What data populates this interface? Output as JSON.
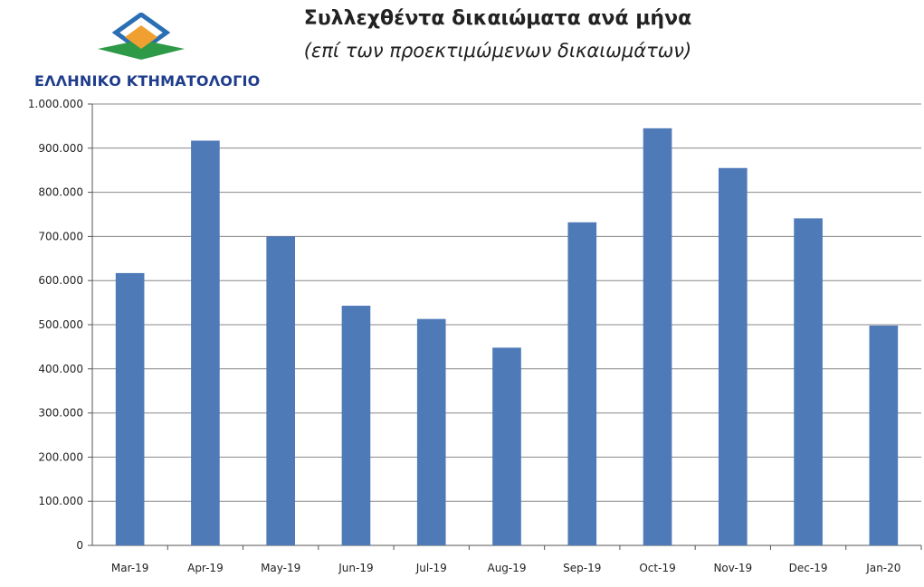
{
  "logo": {
    "name": "ΕΛΛΗΝΙΚΟ ΚΤΗΜΑΤΟΛΟΓΙΟ",
    "colors": {
      "orange": "#f0a030",
      "green": "#2e9a48",
      "blue": "#2a6fb3",
      "text": "#1f3d8c"
    }
  },
  "chart_data": {
    "type": "bar",
    "title": "Συλλεχθέντα δικαιώματα ανά μήνα",
    "subtitle": "(επί των προεκτιμώμενων δικαιωμάτων)",
    "categories": [
      "Mar-19",
      "Apr-19",
      "May-19",
      "Jun-19",
      "Jul-19",
      "Aug-19",
      "Sep-19",
      "Oct-19",
      "Nov-19",
      "Dec-19",
      "Jan-20"
    ],
    "values": [
      617000,
      917000,
      700000,
      543000,
      513000,
      448000,
      732000,
      945000,
      855000,
      741000,
      498000
    ],
    "ylim": [
      0,
      1000000
    ],
    "yticks": [
      0,
      100000,
      200000,
      300000,
      400000,
      500000,
      600000,
      700000,
      800000,
      900000,
      1000000
    ],
    "ytick_labels": [
      "0",
      "100.000",
      "200.000",
      "300.000",
      "400.000",
      "500.000",
      "600.000",
      "700.000",
      "800.000",
      "900.000",
      "1.000.000"
    ],
    "grid": true,
    "legend": "none",
    "bar_color": "#4f7ab8",
    "grid_color": "#888888"
  }
}
